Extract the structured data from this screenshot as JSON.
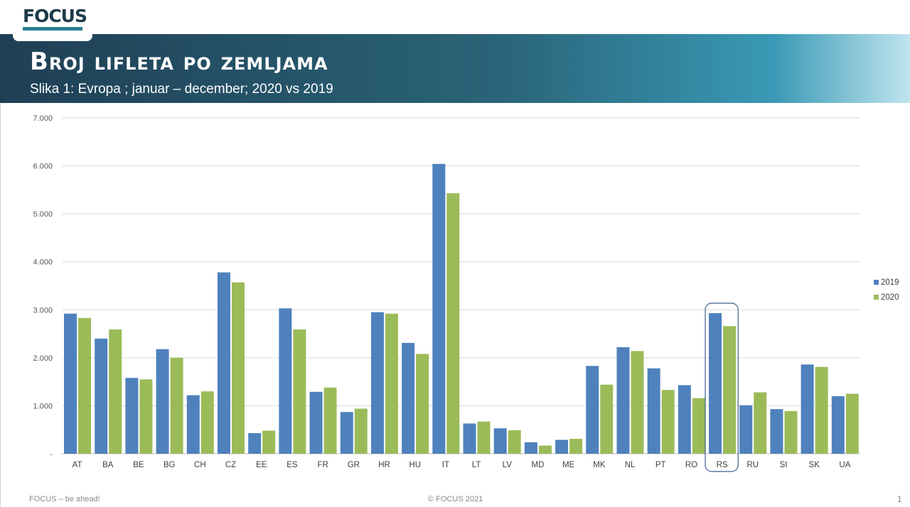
{
  "header": {
    "logo_text": "FOCUS",
    "title": "Broj lifleta po zemljama",
    "subtitle": "Slika 1: Evropa ; januar – december; 2020 vs 2019"
  },
  "footer": {
    "left": "FOCUS – be ahead!",
    "center": "© FOCUS 2021",
    "page_number": "1"
  },
  "colors": {
    "series_2019": "#4f81bd",
    "series_2020": "#9bbb59",
    "highlight_box": "#3d5f8f"
  },
  "chart_data": {
    "type": "bar",
    "categories": [
      "AT",
      "BA",
      "BE",
      "BG",
      "CH",
      "CZ",
      "EE",
      "ES",
      "FR",
      "GR",
      "HR",
      "HU",
      "IT",
      "LT",
      "LV",
      "MD",
      "ME",
      "MK",
      "NL",
      "PT",
      "RO",
      "RS",
      "RU",
      "SI",
      "SK",
      "UA"
    ],
    "series": [
      {
        "name": "2019",
        "values": [
          2920,
          2400,
          1580,
          2180,
          1220,
          3780,
          430,
          3030,
          1290,
          870,
          2950,
          2310,
          6040,
          630,
          530,
          240,
          290,
          1830,
          2220,
          1780,
          1430,
          2930,
          1010,
          930,
          1860,
          1200
        ]
      },
      {
        "name": "2020",
        "values": [
          2830,
          2590,
          1550,
          2000,
          1300,
          3570,
          480,
          2590,
          1380,
          940,
          2920,
          2080,
          5430,
          670,
          490,
          170,
          310,
          1440,
          2140,
          1330,
          1160,
          2660,
          1280,
          890,
          1810,
          1250
        ]
      }
    ],
    "ylim": [
      0,
      7000
    ],
    "yticks": [
      "-",
      "1.000",
      "2.000",
      "3.000",
      "4.000",
      "5.000",
      "6.000",
      "7.000"
    ],
    "grid": true,
    "legend_position": "right",
    "highlight_category": "RS"
  }
}
